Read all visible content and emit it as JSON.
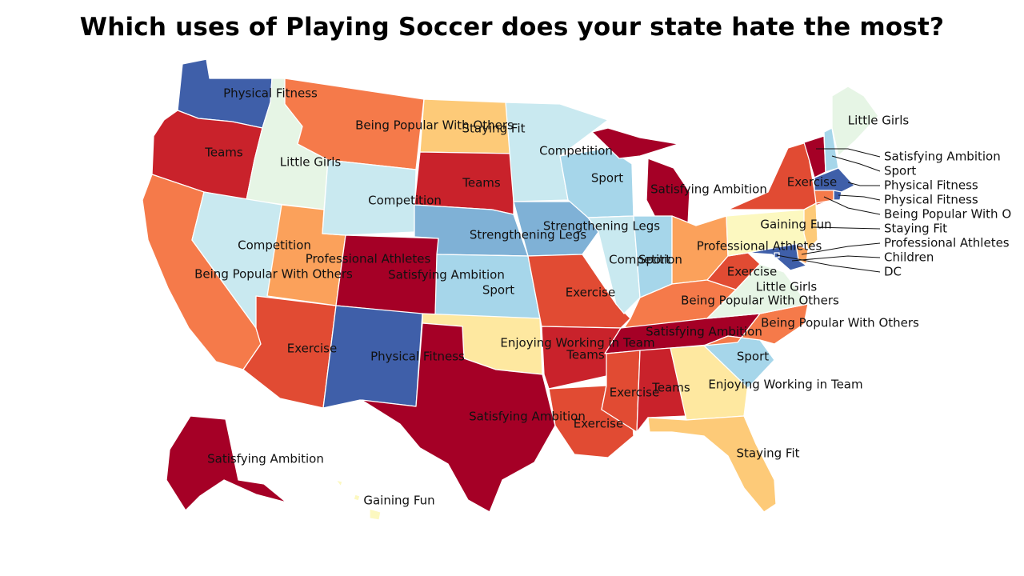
{
  "title": "Which uses of Playing Soccer does your state hate the most?",
  "colors": {
    "Satisfying Ambition": "#a50026",
    "Teams": "#c9222b",
    "Exercise": "#e14b33",
    "Being Popular With Others": "#f57a4a",
    "Professional Athletes": "#fba15b",
    "Staying Fit": "#fdca78",
    "Enjoying Working in Team": "#fee8a0",
    "Gaining Fun": "#fcf8c0",
    "Little Girls": "#e6f5e5",
    "Competition": "#c9e9f0",
    "Sport": "#a6d6ea",
    "Strengthening Legs": "#7fb1d6",
    "Physical Fitness": "#3f5fa9",
    "Children": "#3f5fa9",
    "DC": "#3f5fa9"
  },
  "states": {
    "WA": "Physical Fitness",
    "OR": "Teams",
    "CA": "Being Popular With Others",
    "ID": "Little Girls",
    "NV": "Competition",
    "AZ": "Exercise",
    "UT": "Professional Athletes",
    "MT": "Being Popular With Others",
    "WY": "Competition",
    "CO": "Satisfying Ambition",
    "NM": "Physical Fitness",
    "ND": "Staying Fit",
    "SD": "Teams",
    "NE": "Strengthening Legs",
    "KS": "Sport",
    "OK": "Enjoying Working in Team",
    "TX": "Satisfying Ambition",
    "MN": "Competition",
    "IA": "Strengthening Legs",
    "MO": "Exercise",
    "AR": "Teams",
    "LA": "Exercise",
    "WI": "Sport",
    "IL": "Competition",
    "MI": "Satisfying Ambition",
    "IN": "Sport",
    "OH": "Professional Athletes",
    "KY": "Being Popular With Others",
    "TN": "Satisfying Ambition",
    "MS": "Exercise",
    "AL": "Teams",
    "GA": "Enjoying Working in Team",
    "FL": "Staying Fit",
    "SC": "Sport",
    "NC": "Being Popular With Others",
    "VA": "Little Girls",
    "WV": "Exercise",
    "PA": "Gaining Fun",
    "NY": "Exercise",
    "VT": "Satisfying Ambition",
    "NH": "Sport",
    "ME": "Little Girls",
    "MA": "Physical Fitness",
    "RI": "Physical Fitness",
    "CT": "Being Popular With Others",
    "NJ": "Staying Fit",
    "DE": "Professional Athletes",
    "MD": "Children",
    "DC": "DC",
    "AK": "Satisfying Ambition",
    "HI": "Gaining Fun"
  },
  "labels": {
    "WA": "Physical Fitness",
    "OR": "Teams",
    "CA": "Being Popular With Others",
    "ID": "Little Girls",
    "NV": "Competition",
    "AZ": "Exercise",
    "UT": "Professional Athletes",
    "MT": "Being Popular With Others",
    "WY": "Competition",
    "CO": "Satisfying Ambition",
    "NM": "Physical Fitness",
    "ND": "Staying Fit",
    "SD": "Teams",
    "NE": "Strengthening Legs",
    "KS": "Sport",
    "OK": "Enjoying Working in Team",
    "TX": "Satisfying Ambition",
    "MN": "Competition",
    "IA": "Strengthening Legs",
    "MO": "Exercise",
    "AR": "Teams",
    "LA": "Exercise",
    "WI": "Sport",
    "IL": "Competition",
    "MI": "Satisfying Ambition",
    "IN": "Sport",
    "OH": "Professional Athletes",
    "KY": "Being Popular With Others",
    "TN": "Satisfying Ambition",
    "MS": "Exercise",
    "AL": "Teams",
    "GA": "Enjoying Working in Team",
    "FL": "Staying Fit",
    "SC": "Sport",
    "NC": "Being Popular With Others",
    "VA": "Little Girls",
    "WV": "Exercise",
    "PA": "Gaining Fun",
    "NY": "Exercise",
    "ME": "Little Girls",
    "AK": "Satisfying Ambition",
    "HI": "Gaining Fun",
    "VT": "Satisfying Ambition",
    "NH": "Sport",
    "MA": "Physical Fitness",
    "RI": "Physical Fitness",
    "CT": "Being Popular With O",
    "NJ": "Staying Fit",
    "DE": "Professional Athletes",
    "MD": "Children",
    "DC": "DC"
  }
}
